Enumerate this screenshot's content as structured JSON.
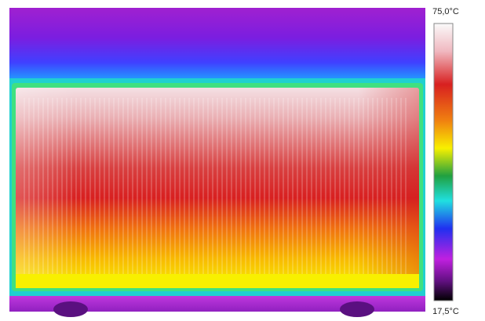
{
  "scale": {
    "max_label": "75,0°C",
    "min_label": "17,5°C"
  }
}
